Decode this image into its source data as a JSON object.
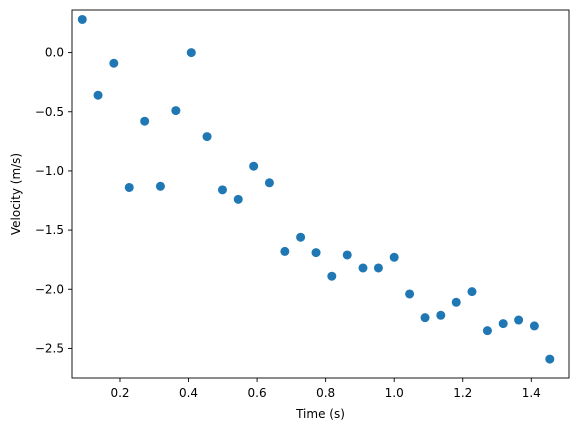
{
  "chart_data": {
    "type": "scatter",
    "title": "",
    "xlabel": "Time (s)",
    "ylabel": "Velocity (m/s)",
    "xlim": [
      0.06,
      1.51
    ],
    "ylim": [
      -2.75,
      0.36
    ],
    "xticks": [
      0.2,
      0.4,
      0.6,
      0.8,
      1.0,
      1.2,
      1.4
    ],
    "xtick_labels": [
      "0.2",
      "0.4",
      "0.6",
      "0.8",
      "1.0",
      "1.2",
      "1.4"
    ],
    "yticks": [
      0.0,
      -0.5,
      -1.0,
      -1.5,
      -2.0,
      -2.5
    ],
    "ytick_labels": [
      "0.0",
      "−0.5",
      "−1.0",
      "−1.5",
      "−2.0",
      "−2.5"
    ],
    "grid": false,
    "marker_color": "#1f77b4",
    "series": [
      {
        "x": [
          0.09,
          0.136,
          0.182,
          0.227,
          0.272,
          0.318,
          0.363,
          0.408,
          0.454,
          0.499,
          0.545,
          0.59,
          0.636,
          0.681,
          0.727,
          0.772,
          0.818,
          0.863,
          0.909,
          0.954,
          1.0,
          1.045,
          1.09,
          1.136,
          1.181,
          1.227,
          1.272,
          1.318,
          1.363,
          1.409,
          1.454
        ],
        "y": [
          0.28,
          -0.36,
          -0.09,
          -1.14,
          -0.58,
          -1.13,
          -0.49,
          0.0,
          -0.71,
          -1.16,
          -1.24,
          -0.96,
          -1.1,
          -1.68,
          -1.56,
          -1.69,
          -1.89,
          -1.71,
          -1.82,
          -1.82,
          -1.73,
          -2.04,
          -2.24,
          -2.22,
          -2.11,
          -2.02,
          -2.35,
          -2.29,
          -2.26,
          -2.31,
          -2.59
        ]
      }
    ]
  }
}
